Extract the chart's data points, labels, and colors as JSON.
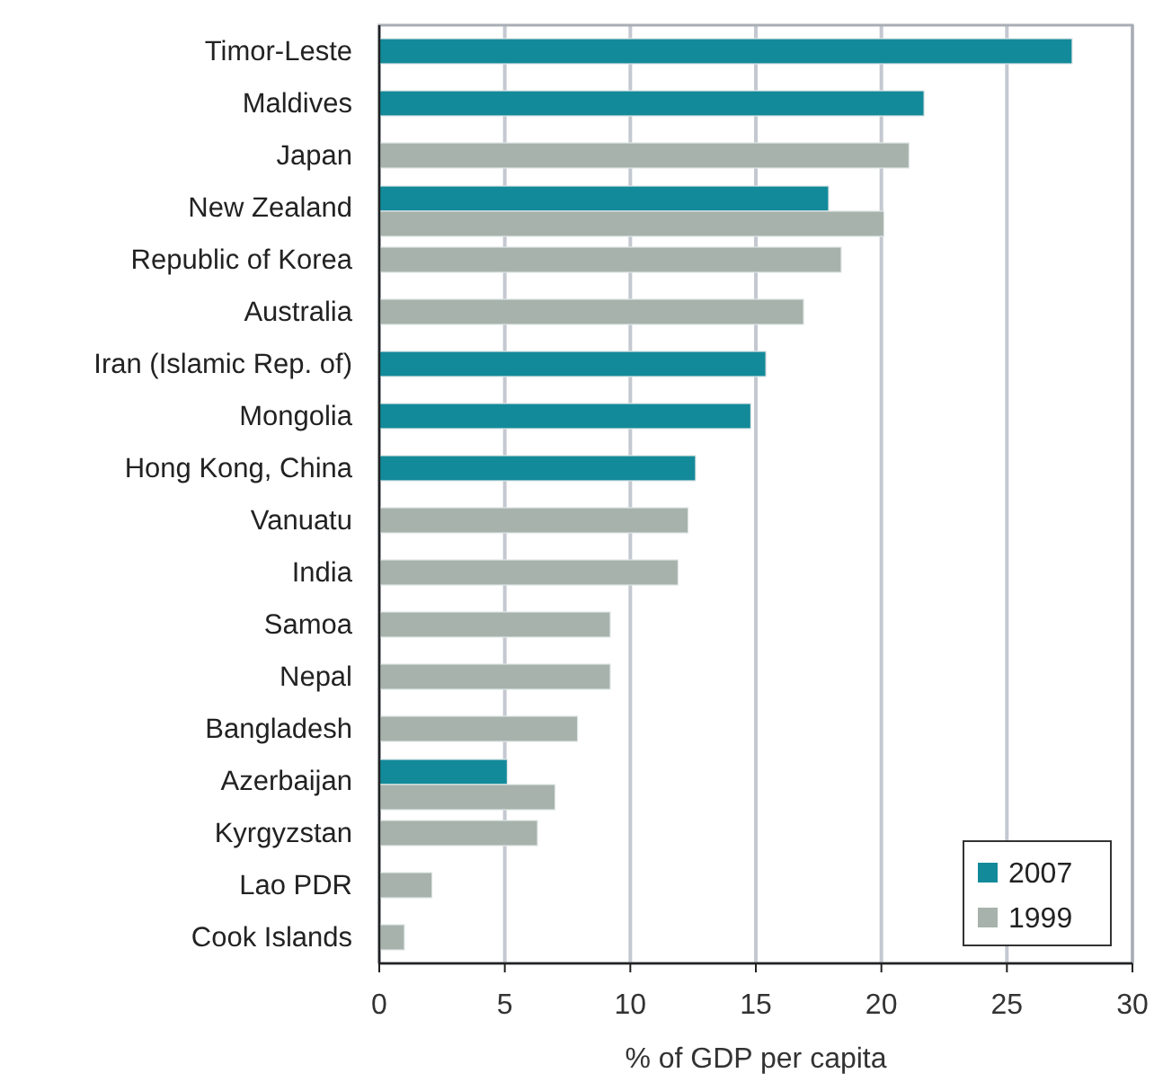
{
  "chart_data": {
    "type": "bar",
    "orientation": "horizontal",
    "xlabel": "% of GDP per capita",
    "categories": [
      "Timor-Leste",
      "Maldives",
      "Japan",
      "New Zealand",
      "Republic of Korea",
      "Australia",
      "Iran (Islamic Rep. of)",
      "Mongolia",
      "Hong Kong, China",
      "Vanuatu",
      "India",
      "Samoa",
      "Nepal",
      "Bangladesh",
      "Azerbaijan",
      "Kyrgyzstan",
      "Lao PDR",
      "Cook Islands"
    ],
    "series": [
      {
        "name": "2007",
        "color": "#138a9a",
        "values": [
          27.6,
          21.7,
          null,
          17.9,
          null,
          null,
          15.4,
          14.8,
          12.6,
          null,
          null,
          null,
          null,
          null,
          5.1,
          null,
          null,
          null
        ]
      },
      {
        "name": "1999",
        "color": "#a6b2ab",
        "values": [
          null,
          null,
          21.1,
          20.1,
          18.4,
          16.9,
          null,
          null,
          null,
          12.3,
          11.9,
          9.2,
          9.2,
          7.9,
          7.0,
          6.3,
          2.1,
          1.0
        ]
      }
    ],
    "xlim": [
      0,
      30
    ],
    "xticks": [
      0,
      5,
      10,
      15,
      20,
      25,
      30
    ],
    "grid": "x",
    "legend": "bottom right"
  }
}
